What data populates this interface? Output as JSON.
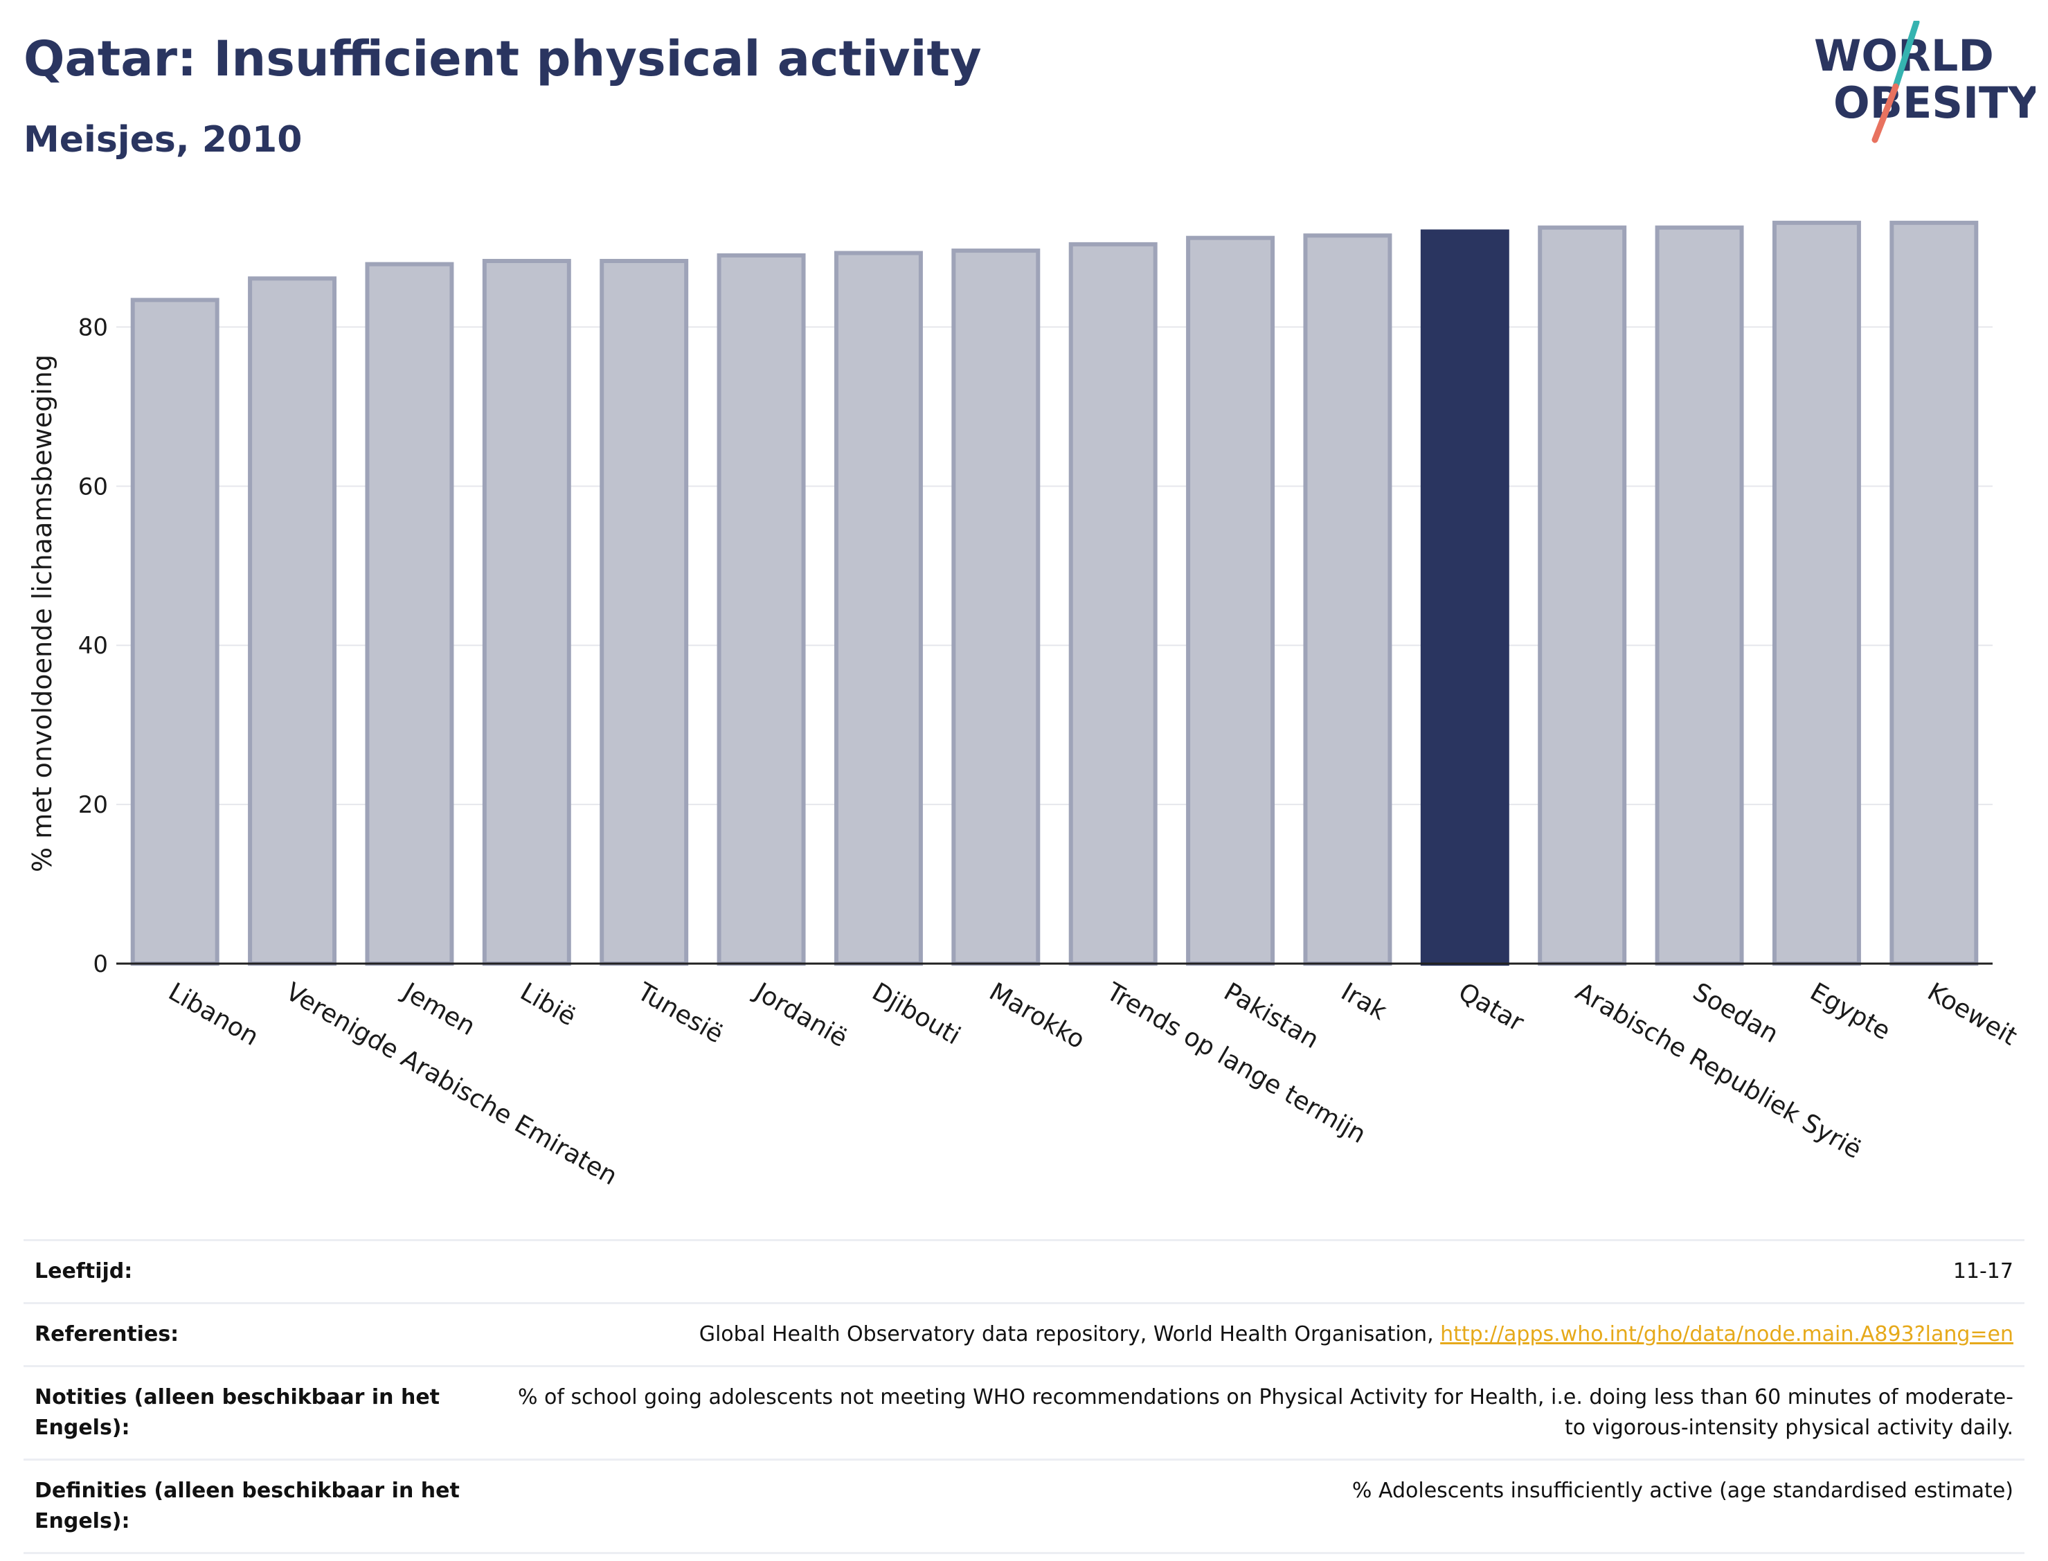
{
  "header": {
    "title": "Qatar: Insufficient physical activity",
    "subtitle": "Meisjes, 2010"
  },
  "logo": {
    "line1": "WORLD",
    "line2": "OBESITY",
    "colors": {
      "text": "#2a3560",
      "slash_teal": "#35b3b0",
      "slash_coral": "#e8725f"
    }
  },
  "chart_data": {
    "type": "bar",
    "ylabel": "% met onvoldoende lichaamsbeweging",
    "xlabel": "",
    "ylim": [
      0,
      95
    ],
    "yticks": [
      0,
      20,
      40,
      60,
      80
    ],
    "grid": true,
    "highlight": "Qatar",
    "colors": {
      "bar": "#bfc2ce",
      "bar_border": "#9ea3b8",
      "highlight": "#2a3560"
    },
    "categories": [
      "Libanon",
      "Verenigde Arabische Emiraten",
      "Jemen",
      "Libië",
      "Tunesië",
      "Jordanië",
      "Djibouti",
      "Marokko",
      "Trends op lange termijn",
      "Pakistan",
      "Irak",
      "Qatar",
      "Arabische Republiek Syrië",
      "Soedan",
      "Egypte",
      "Koeweit"
    ],
    "values": [
      83.4,
      86.1,
      87.9,
      88.3,
      88.3,
      89.0,
      89.3,
      89.6,
      90.4,
      91.2,
      91.5,
      92.0,
      92.5,
      92.5,
      93.1,
      93.1
    ]
  },
  "info": {
    "age_label": "Leeftijd:",
    "age_value": "11-17",
    "ref_label": "Referenties:",
    "ref_text": "Global Health Observatory data repository, World Health Organisation, ",
    "ref_link": "http://apps.who.int/gho/data/node.main.A893?lang=en",
    "notes_label": "Notities (alleen beschikbaar in het Engels):",
    "notes_value": "% of school going adolescents not meeting WHO recommendations on Physical Activity for Health, i.e. doing less than 60 minutes of moderate- to vigorous-intensity physical activity daily.",
    "def_label": "Definities (alleen beschikbaar in het Engels):",
    "def_value": "% Adolescents insufficiently active (age standardised estimate)"
  }
}
